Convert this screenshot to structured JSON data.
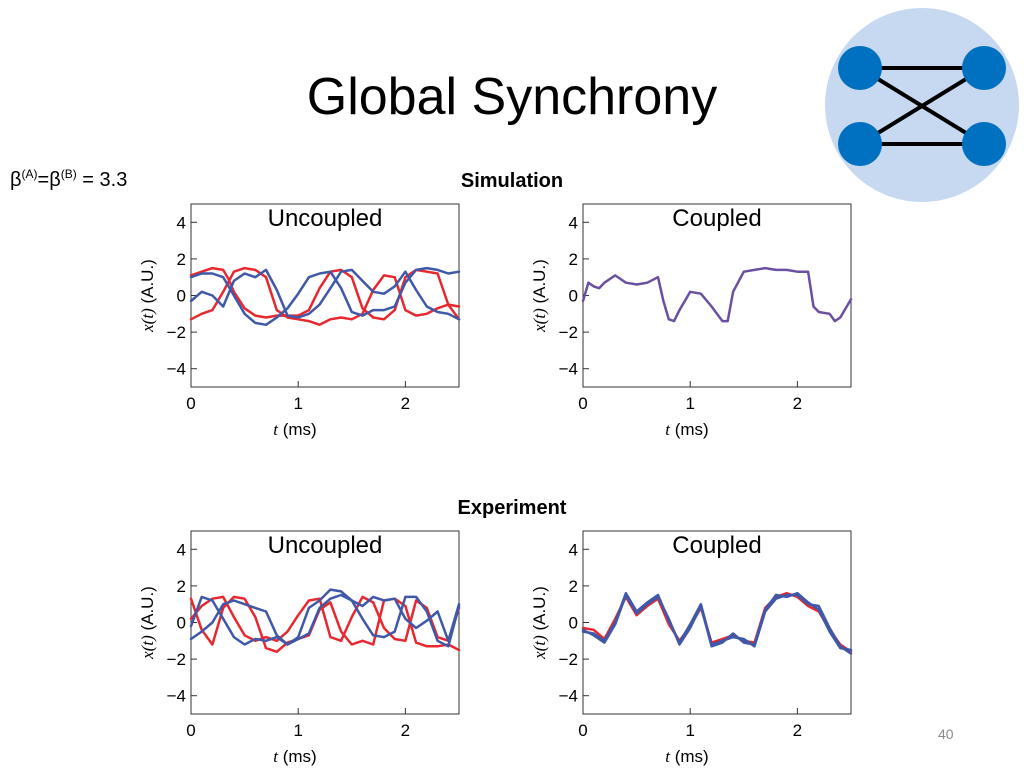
{
  "slide": {
    "title": "Global Synchrony",
    "beta_label": {
      "symbol1": "β",
      "sup1": "(A)",
      "eq": "=",
      "symbol2": "β",
      "sup2": "(B)",
      "value": " = 3.3"
    },
    "page_number": "40",
    "section_simulation": "Simulation",
    "section_experiment": "Experiment"
  },
  "network_diagram": {
    "background_color": "#c6d9f1",
    "node_color": "#0070c0",
    "nodes": 4,
    "edges": "two horizontal links and one cross pair"
  },
  "colors": {
    "red": "#e8282f",
    "blue": "#3f58a8",
    "purple": "#6a4fa2"
  },
  "chart_data": [
    {
      "id": "sim-uncoupled",
      "type": "line",
      "title": "Uncoupled",
      "xlabel_var": "t",
      "xlabel_unit": " (ms)",
      "ylabel_var": "x(t)",
      "ylabel_unit": " (A.U.)",
      "xlim": [
        0,
        2.5
      ],
      "ylim": [
        -5,
        5
      ],
      "xticks": [
        0,
        1,
        2
      ],
      "yticks": [
        -4,
        -2,
        0,
        2,
        4
      ],
      "series": [
        {
          "color": "red",
          "x": [
            0,
            0.1,
            0.2,
            0.3,
            0.35,
            0.4,
            0.5,
            0.6,
            0.7,
            0.8,
            0.9,
            1.0,
            1.1,
            1.2,
            1.3,
            1.4,
            1.5,
            1.6,
            1.7,
            1.8,
            1.9,
            2.0,
            2.1,
            2.2,
            2.3,
            2.4,
            2.5
          ],
          "y": [
            1.1,
            1.3,
            1.5,
            1.4,
            0.9,
            0.2,
            -0.7,
            -1.1,
            -1.2,
            -1.1,
            -1.1,
            -1.1,
            -0.8,
            0.4,
            1.3,
            1.4,
            1.0,
            -0.7,
            -1.2,
            -1.3,
            -0.8,
            1.0,
            1.4,
            1.3,
            1.2,
            -0.5,
            -0.6
          ]
        },
        {
          "color": "red",
          "x": [
            0,
            0.1,
            0.2,
            0.3,
            0.4,
            0.5,
            0.6,
            0.7,
            0.8,
            0.9,
            1.0,
            1.1,
            1.2,
            1.3,
            1.4,
            1.5,
            1.6,
            1.7,
            1.8,
            1.9,
            2.0,
            2.1,
            2.2,
            2.3,
            2.4,
            2.5
          ],
          "y": [
            -1.3,
            -1.0,
            -0.8,
            0.2,
            1.3,
            1.5,
            1.4,
            1.0,
            -0.8,
            -1.2,
            -1.3,
            -1.4,
            -1.6,
            -1.3,
            -1.2,
            -1.3,
            -1.0,
            0.3,
            1.1,
            1.0,
            -0.8,
            -1.1,
            -1.0,
            -0.7,
            -0.5,
            -1.3
          ]
        },
        {
          "color": "blue",
          "x": [
            0,
            0.1,
            0.2,
            0.3,
            0.4,
            0.5,
            0.6,
            0.7,
            0.8,
            0.9,
            1.0,
            1.1,
            1.2,
            1.3,
            1.4,
            1.5,
            1.6,
            1.7,
            1.8,
            1.9,
            2.0,
            2.1,
            2.2,
            2.3,
            2.4,
            2.5
          ],
          "y": [
            1.0,
            1.2,
            1.2,
            1.0,
            0.0,
            -1.0,
            -1.5,
            -1.6,
            -1.2,
            -0.7,
            0.1,
            1.0,
            1.2,
            1.3,
            0.4,
            -0.9,
            -1.1,
            -0.8,
            -0.8,
            -0.6,
            0.7,
            1.4,
            1.5,
            1.4,
            1.2,
            1.3
          ]
        },
        {
          "color": "blue",
          "x": [
            0,
            0.1,
            0.2,
            0.3,
            0.4,
            0.5,
            0.6,
            0.7,
            0.8,
            0.9,
            1.0,
            1.1,
            1.2,
            1.3,
            1.4,
            1.5,
            1.6,
            1.7,
            1.8,
            1.9,
            2.0,
            2.1,
            2.2,
            2.3,
            2.4,
            2.5
          ],
          "y": [
            -0.3,
            0.2,
            0.0,
            -0.6,
            0.8,
            1.2,
            1.0,
            1.4,
            0.3,
            -1.1,
            -1.2,
            -1.0,
            -0.5,
            0.4,
            1.3,
            1.4,
            0.8,
            0.2,
            0.1,
            0.5,
            1.3,
            0.3,
            -0.6,
            -0.9,
            -1.0,
            -1.3
          ]
        }
      ]
    },
    {
      "id": "sim-coupled",
      "type": "line",
      "title": "Coupled",
      "xlabel_var": "t",
      "xlabel_unit": " (ms)",
      "ylabel_var": "x(t)",
      "ylabel_unit": " (A.U.)",
      "xlim": [
        0,
        2.5
      ],
      "ylim": [
        -5,
        5
      ],
      "xticks": [
        0,
        1,
        2
      ],
      "yticks": [
        -4,
        -2,
        0,
        2,
        4
      ],
      "series": [
        {
          "color": "purple",
          "x": [
            0,
            0.05,
            0.1,
            0.15,
            0.2,
            0.3,
            0.35,
            0.4,
            0.5,
            0.6,
            0.7,
            0.75,
            0.8,
            0.85,
            0.9,
            1.0,
            1.1,
            1.2,
            1.3,
            1.35,
            1.4,
            1.5,
            1.6,
            1.7,
            1.8,
            1.9,
            2.0,
            2.1,
            2.15,
            2.2,
            2.3,
            2.35,
            2.4,
            2.5
          ],
          "y": [
            -0.3,
            0.7,
            0.5,
            0.4,
            0.7,
            1.1,
            0.9,
            0.7,
            0.6,
            0.7,
            1.0,
            -0.3,
            -1.3,
            -1.4,
            -0.8,
            0.2,
            0.1,
            -0.6,
            -1.4,
            -1.4,
            0.2,
            1.3,
            1.4,
            1.5,
            1.4,
            1.4,
            1.3,
            1.3,
            -0.6,
            -0.9,
            -1.0,
            -1.4,
            -1.2,
            -0.2
          ]
        }
      ]
    },
    {
      "id": "exp-uncoupled",
      "type": "line",
      "title": "Uncoupled",
      "xlabel_var": "t",
      "xlabel_unit": " (ms)",
      "ylabel_var": "x(t)",
      "ylabel_unit": " (A.U.)",
      "xlim": [
        0,
        2.5
      ],
      "ylim": [
        -5,
        5
      ],
      "xticks": [
        0,
        1,
        2
      ],
      "yticks": [
        -4,
        -2,
        0,
        2,
        4
      ],
      "series": [
        {
          "color": "red",
          "x": [
            0,
            0.1,
            0.2,
            0.3,
            0.4,
            0.5,
            0.6,
            0.7,
            0.8,
            0.9,
            1.0,
            1.1,
            1.2,
            1.3,
            1.4,
            1.5,
            1.6,
            1.7,
            1.8,
            1.9,
            2.0,
            2.1,
            2.2,
            2.3,
            2.4,
            2.5
          ],
          "y": [
            1.3,
            -0.4,
            -1.2,
            0.8,
            1.4,
            1.3,
            0.3,
            -1.4,
            -1.6,
            -1.1,
            -0.9,
            -0.7,
            0.7,
            1.1,
            -0.5,
            -1.2,
            -1.0,
            -1.2,
            1.2,
            1.3,
            0.9,
            -1.1,
            -1.3,
            -1.3,
            -1.2,
            -1.5
          ]
        },
        {
          "color": "red",
          "x": [
            0,
            0.1,
            0.2,
            0.3,
            0.4,
            0.5,
            0.6,
            0.7,
            0.8,
            0.9,
            1.0,
            1.1,
            1.2,
            1.3,
            1.4,
            1.5,
            1.6,
            1.7,
            1.8,
            1.9,
            2.0,
            2.1,
            2.2,
            2.3,
            2.4,
            2.5
          ],
          "y": [
            0.2,
            0.9,
            1.3,
            1.4,
            0.3,
            -0.7,
            -1.0,
            -0.8,
            -1.0,
            -0.5,
            0.4,
            1.2,
            1.3,
            -0.8,
            -1.0,
            0.3,
            1.4,
            1.1,
            -0.3,
            -0.9,
            -1.0,
            1.2,
            0.8,
            -0.8,
            -1.0,
            0.8
          ]
        },
        {
          "color": "blue",
          "x": [
            0,
            0.1,
            0.2,
            0.3,
            0.4,
            0.5,
            0.6,
            0.7,
            0.8,
            0.9,
            1.0,
            1.1,
            1.2,
            1.3,
            1.4,
            1.5,
            1.6,
            1.7,
            1.8,
            1.9,
            2.0,
            2.1,
            2.2,
            2.3,
            2.4,
            2.5
          ],
          "y": [
            -0.2,
            1.4,
            1.2,
            0.2,
            -0.8,
            -1.2,
            -0.9,
            -1.0,
            -0.8,
            -1.2,
            -0.9,
            -0.6,
            0.8,
            1.3,
            1.5,
            1.2,
            0.2,
            -0.7,
            -0.8,
            -0.5,
            1.4,
            1.4,
            0.6,
            -1.0,
            -1.3,
            0.9
          ]
        },
        {
          "color": "blue",
          "x": [
            0,
            0.1,
            0.2,
            0.3,
            0.4,
            0.5,
            0.6,
            0.7,
            0.8,
            0.9,
            1.0,
            1.1,
            1.2,
            1.3,
            1.4,
            1.5,
            1.6,
            1.7,
            1.8,
            1.9,
            2.0,
            2.1,
            2.2,
            2.3,
            2.4,
            2.5
          ],
          "y": [
            -0.9,
            -0.5,
            0.0,
            1.0,
            1.2,
            1.0,
            0.8,
            0.6,
            -0.7,
            -1.2,
            -0.8,
            0.8,
            1.2,
            1.8,
            1.7,
            1.2,
            0.9,
            1.4,
            1.2,
            1.3,
            0.2,
            -0.3,
            0.1,
            0.6,
            -1.0,
            1.0
          ]
        }
      ]
    },
    {
      "id": "exp-coupled",
      "type": "line",
      "title": "Coupled",
      "xlabel_var": "t",
      "xlabel_unit": " (ms)",
      "ylabel_var": "x(t)",
      "ylabel_unit": " (A.U.)",
      "xlim": [
        0,
        2.5
      ],
      "ylim": [
        -5,
        5
      ],
      "xticks": [
        0,
        1,
        2
      ],
      "yticks": [
        -4,
        -2,
        0,
        2,
        4
      ],
      "series": [
        {
          "color": "red",
          "x": [
            0,
            0.1,
            0.2,
            0.3,
            0.4,
            0.5,
            0.6,
            0.7,
            0.8,
            0.9,
            1.0,
            1.1,
            1.2,
            1.3,
            1.4,
            1.5,
            1.6,
            1.7,
            1.8,
            1.9,
            2.0,
            2.1,
            2.2,
            2.3,
            2.4,
            2.5
          ],
          "y": [
            -0.3,
            -0.4,
            -0.9,
            0.2,
            1.4,
            0.4,
            0.9,
            1.3,
            -0.1,
            -1.0,
            -0.2,
            0.8,
            -1.1,
            -0.9,
            -0.7,
            -1.0,
            -1.1,
            0.8,
            1.4,
            1.6,
            1.4,
            0.9,
            0.6,
            -0.4,
            -1.2,
            -1.6
          ]
        },
        {
          "color": "blue",
          "x": [
            0,
            0.1,
            0.2,
            0.3,
            0.4,
            0.5,
            0.6,
            0.7,
            0.8,
            0.9,
            1.0,
            1.1,
            1.2,
            1.3,
            1.4,
            1.5,
            1.6,
            1.7,
            1.8,
            1.9,
            2.0,
            2.1,
            2.2,
            2.3,
            2.4,
            2.5
          ],
          "y": [
            -0.5,
            -0.6,
            -1.0,
            0.0,
            1.6,
            0.6,
            1.1,
            1.5,
            0.1,
            -1.1,
            -0.1,
            1.0,
            -1.2,
            -1.0,
            -0.8,
            -0.9,
            -1.3,
            0.6,
            1.3,
            1.5,
            1.5,
            1.0,
            0.9,
            -0.3,
            -1.3,
            -1.7
          ]
        },
        {
          "color": "blue",
          "x": [
            0,
            0.1,
            0.2,
            0.3,
            0.4,
            0.5,
            0.6,
            0.7,
            0.8,
            0.9,
            1.0,
            1.1,
            1.2,
            1.3,
            1.4,
            1.5,
            1.6,
            1.7,
            1.8,
            1.9,
            2.0,
            2.1,
            2.2,
            2.3,
            2.4,
            2.5
          ],
          "y": [
            -0.4,
            -0.7,
            -1.1,
            -0.1,
            1.5,
            0.5,
            1.0,
            1.4,
            0.2,
            -1.2,
            -0.3,
            0.9,
            -1.3,
            -1.1,
            -0.6,
            -1.1,
            -1.2,
            0.7,
            1.5,
            1.4,
            1.6,
            1.1,
            0.7,
            -0.5,
            -1.4,
            -1.5
          ]
        }
      ]
    }
  ]
}
